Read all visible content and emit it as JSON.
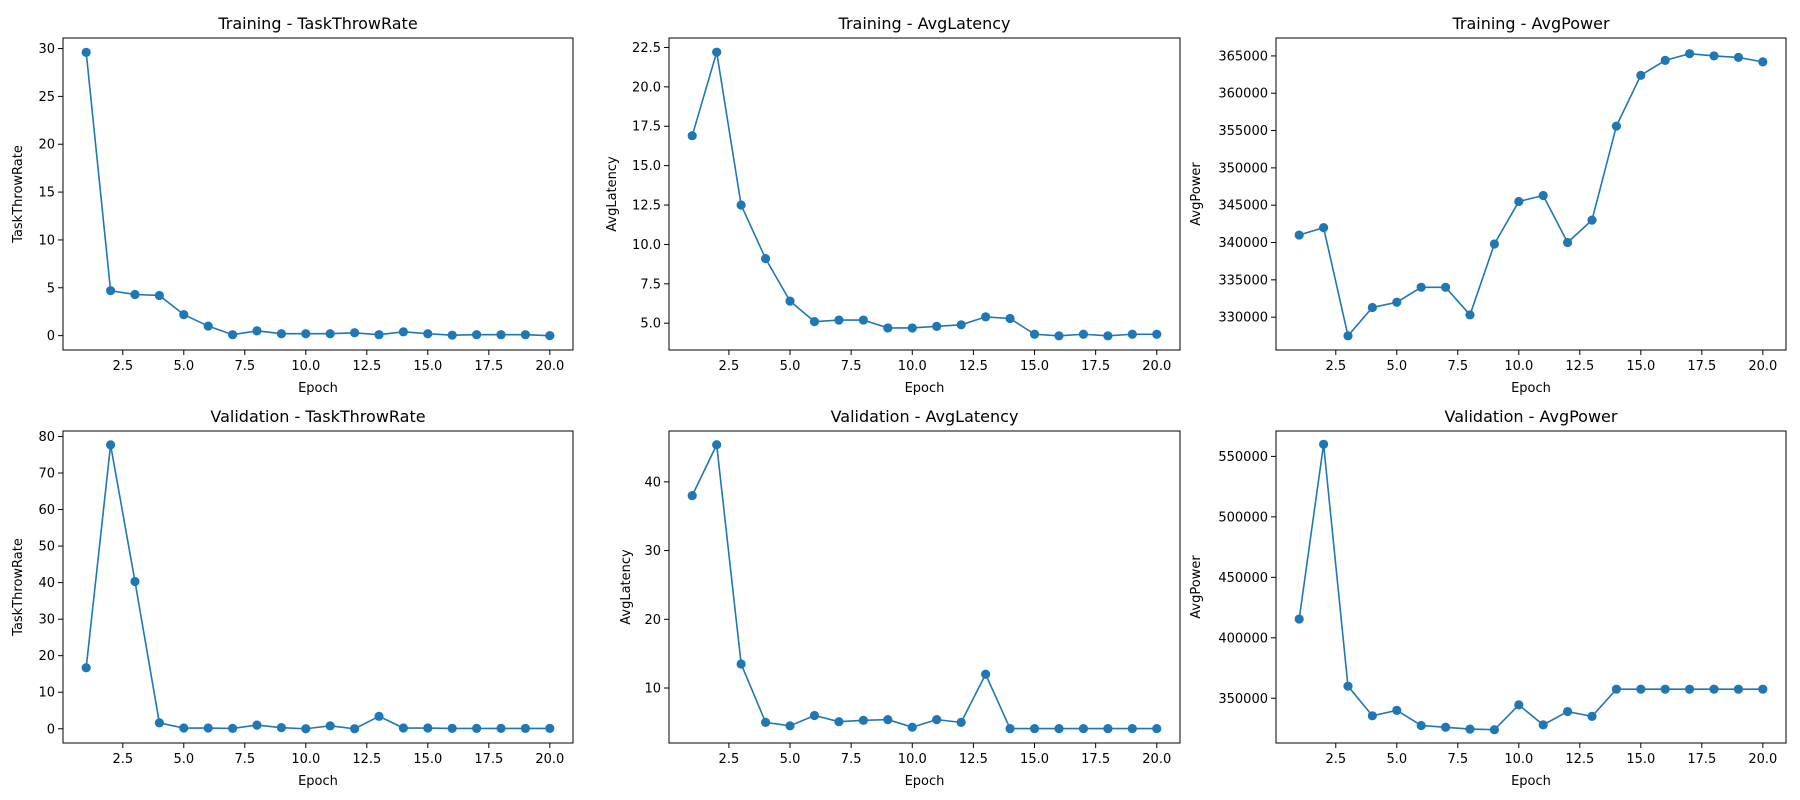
{
  "chart_data": [
    {
      "type": "line",
      "title": "Training - TaskThrowRate",
      "xlabel": "Epoch",
      "ylabel": "TaskThrowRate",
      "xlim": [
        0.05,
        20.95
      ],
      "ylim": [
        -1.5,
        31.1
      ],
      "xticks": [
        2.5,
        5.0,
        7.5,
        10.0,
        12.5,
        15.0,
        17.5,
        20.0
      ],
      "yticks": [
        0,
        5,
        10,
        15,
        20,
        25,
        30
      ],
      "ytick_decimals": 0,
      "x": [
        1,
        2,
        3,
        4,
        5,
        6,
        7,
        8,
        9,
        10,
        11,
        12,
        13,
        14,
        15,
        16,
        17,
        18,
        19,
        20
      ],
      "y": [
        29.6,
        4.7,
        4.3,
        4.2,
        2.2,
        1.0,
        0.1,
        0.5,
        0.2,
        0.2,
        0.2,
        0.3,
        0.1,
        0.4,
        0.2,
        0.05,
        0.1,
        0.1,
        0.1,
        0.0
      ],
      "color": "#1f77b4",
      "grid": false
    },
    {
      "type": "line",
      "title": "Training - AvgLatency",
      "xlabel": "Epoch",
      "ylabel": "AvgLatency",
      "xlim": [
        0.05,
        20.95
      ],
      "ylim": [
        3.3,
        23.1
      ],
      "xticks": [
        2.5,
        5.0,
        7.5,
        10.0,
        12.5,
        15.0,
        17.5,
        20.0
      ],
      "yticks": [
        5.0,
        7.5,
        10.0,
        12.5,
        15.0,
        17.5,
        20.0,
        22.5
      ],
      "ytick_decimals": 1,
      "x": [
        1,
        2,
        3,
        4,
        5,
        6,
        7,
        8,
        9,
        10,
        11,
        12,
        13,
        14,
        15,
        16,
        17,
        18,
        19,
        20
      ],
      "y": [
        16.9,
        22.2,
        12.5,
        9.1,
        6.4,
        5.1,
        5.2,
        5.2,
        4.7,
        4.7,
        4.8,
        4.9,
        5.4,
        5.3,
        4.3,
        4.2,
        4.3,
        4.2,
        4.3,
        4.3
      ],
      "color": "#1f77b4",
      "grid": false
    },
    {
      "type": "line",
      "title": "Training - AvgPower",
      "xlabel": "Epoch",
      "ylabel": "AvgPower",
      "xlim": [
        0.05,
        20.95
      ],
      "ylim": [
        325600,
        367400
      ],
      "xticks": [
        2.5,
        5.0,
        7.5,
        10.0,
        12.5,
        15.0,
        17.5,
        20.0
      ],
      "yticks": [
        330000,
        335000,
        340000,
        345000,
        350000,
        355000,
        360000,
        365000
      ],
      "ytick_decimals": 0,
      "x": [
        1,
        2,
        3,
        4,
        5,
        6,
        7,
        8,
        9,
        10,
        11,
        12,
        13,
        14,
        15,
        16,
        17,
        18,
        19,
        20
      ],
      "y": [
        341000,
        342000,
        327500,
        331300,
        332000,
        334000,
        334000,
        330300,
        339800,
        345500,
        346300,
        340000,
        343000,
        355600,
        362400,
        364400,
        365300,
        365000,
        364800,
        364200
      ],
      "color": "#1f77b4",
      "grid": false
    },
    {
      "type": "line",
      "title": "Validation - TaskThrowRate",
      "xlabel": "Epoch",
      "ylabel": "TaskThrowRate",
      "xlim": [
        0.05,
        20.95
      ],
      "ylim": [
        -3.9,
        81.5
      ],
      "xticks": [
        2.5,
        5.0,
        7.5,
        10.0,
        12.5,
        15.0,
        17.5,
        20.0
      ],
      "yticks": [
        0,
        10,
        20,
        30,
        40,
        50,
        60,
        70,
        80
      ],
      "ytick_decimals": 0,
      "x": [
        1,
        2,
        3,
        4,
        5,
        6,
        7,
        8,
        9,
        10,
        11,
        12,
        13,
        14,
        15,
        16,
        17,
        18,
        19,
        20
      ],
      "y": [
        16.7,
        77.7,
        40.3,
        1.6,
        0.2,
        0.2,
        0.1,
        1.0,
        0.3,
        0.0,
        0.8,
        0.0,
        3.4,
        0.2,
        0.2,
        0.1,
        0.1,
        0.1,
        0.1,
        0.1
      ],
      "color": "#1f77b4",
      "grid": false
    },
    {
      "type": "line",
      "title": "Validation - AvgLatency",
      "xlabel": "Epoch",
      "ylabel": "AvgLatency",
      "xlim": [
        0.05,
        20.95
      ],
      "ylim": [
        2.0,
        47.4
      ],
      "xticks": [
        2.5,
        5.0,
        7.5,
        10.0,
        12.5,
        15.0,
        17.5,
        20.0
      ],
      "yticks": [
        10,
        20,
        30,
        40
      ],
      "ytick_decimals": 0,
      "x": [
        1,
        2,
        3,
        4,
        5,
        6,
        7,
        8,
        9,
        10,
        11,
        12,
        13,
        14,
        15,
        16,
        17,
        18,
        19,
        20
      ],
      "y": [
        38.0,
        45.4,
        13.5,
        5.0,
        4.5,
        6.0,
        5.1,
        5.3,
        5.4,
        4.3,
        5.4,
        5.0,
        12.0,
        4.1,
        4.1,
        4.1,
        4.1,
        4.1,
        4.1,
        4.1
      ],
      "color": "#1f77b4",
      "grid": false
    },
    {
      "type": "line",
      "title": "Validation - AvgPower",
      "xlabel": "Epoch",
      "ylabel": "AvgPower",
      "xlim": [
        0.05,
        20.95
      ],
      "ylim": [
        313000,
        571000
      ],
      "xticks": [
        2.5,
        5.0,
        7.5,
        10.0,
        12.5,
        15.0,
        17.5,
        20.0
      ],
      "yticks": [
        350000,
        400000,
        450000,
        500000,
        550000
      ],
      "ytick_decimals": 0,
      "x": [
        1,
        2,
        3,
        4,
        5,
        6,
        7,
        8,
        9,
        10,
        11,
        12,
        13,
        14,
        15,
        16,
        17,
        18,
        19,
        20
      ],
      "y": [
        415500,
        560000,
        360000,
        335500,
        340000,
        327500,
        326000,
        324500,
        324000,
        344500,
        328000,
        339000,
        335000,
        357500,
        357500,
        357500,
        357500,
        357500,
        357500,
        357500
      ],
      "color": "#1f77b4",
      "grid": false
    }
  ]
}
